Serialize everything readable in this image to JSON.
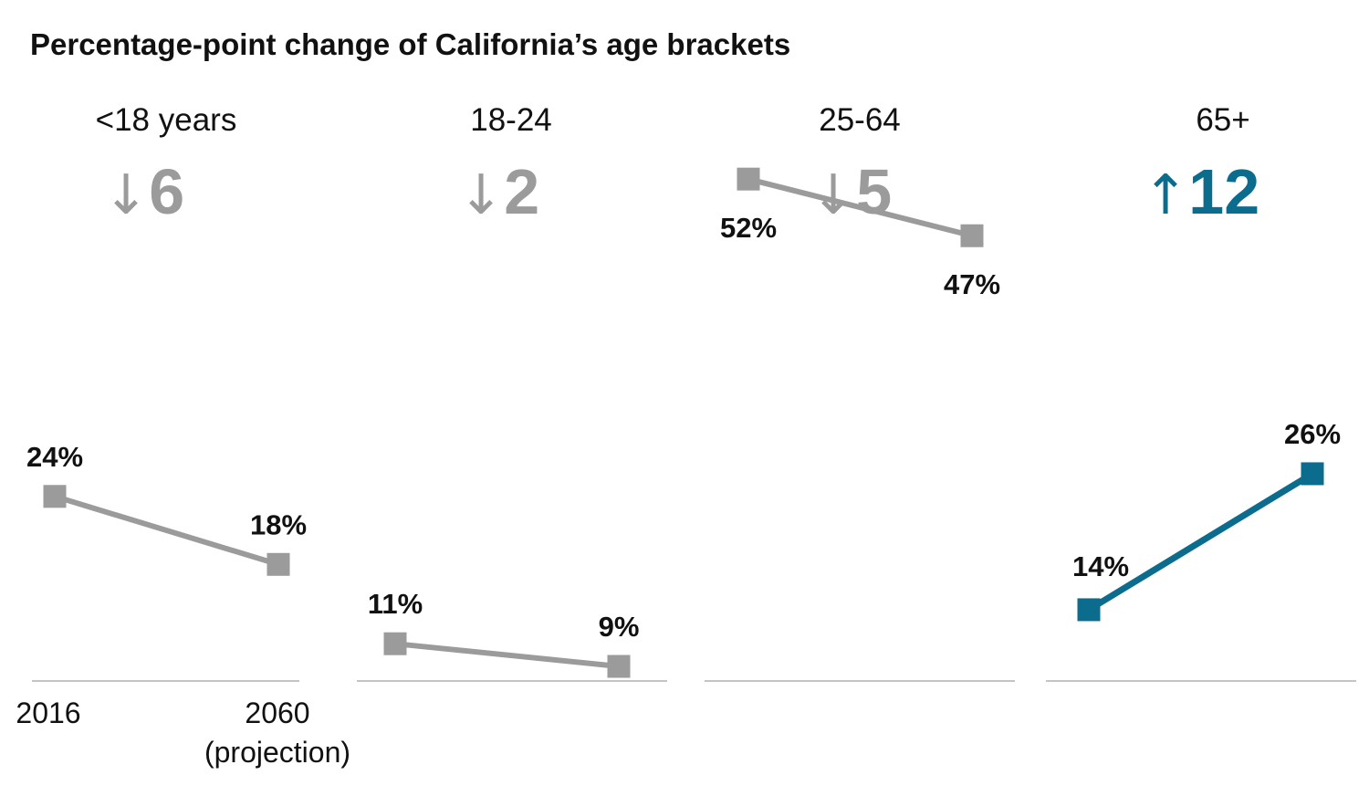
{
  "colors": {
    "muted": "#9b9b9b",
    "accent": "#0b6c8e",
    "text": "#111111",
    "baseline": "#c4c4c4"
  },
  "chart_data": {
    "type": "line",
    "title": "Percentage-point change of California’s age brackets",
    "x": [
      "2016",
      "2060"
    ],
    "x_tick_labels": [
      "2016",
      "2060",
      "(projection)"
    ],
    "unit": "%",
    "panels": [
      {
        "name": "<18 years",
        "values": [
          24,
          18
        ],
        "labels": [
          "24%",
          "18%"
        ],
        "change": 6,
        "direction": "down",
        "arrow": "↓",
        "change_label": "6",
        "highlight": false
      },
      {
        "name": "18-24",
        "values": [
          11,
          9
        ],
        "labels": [
          "11%",
          "9%"
        ],
        "change": 2,
        "direction": "down",
        "arrow": "↓",
        "change_label": "2",
        "highlight": false
      },
      {
        "name": "25-64",
        "values": [
          52,
          47
        ],
        "labels": [
          "52%",
          "47%"
        ],
        "change": 5,
        "direction": "down",
        "arrow": "↓",
        "change_label": "5",
        "highlight": false
      },
      {
        "name": "65+",
        "values": [
          14,
          26
        ],
        "labels": [
          "14%",
          "26%"
        ],
        "change": 12,
        "direction": "up",
        "arrow": "↑",
        "change_label": "12",
        "highlight": true
      }
    ]
  }
}
